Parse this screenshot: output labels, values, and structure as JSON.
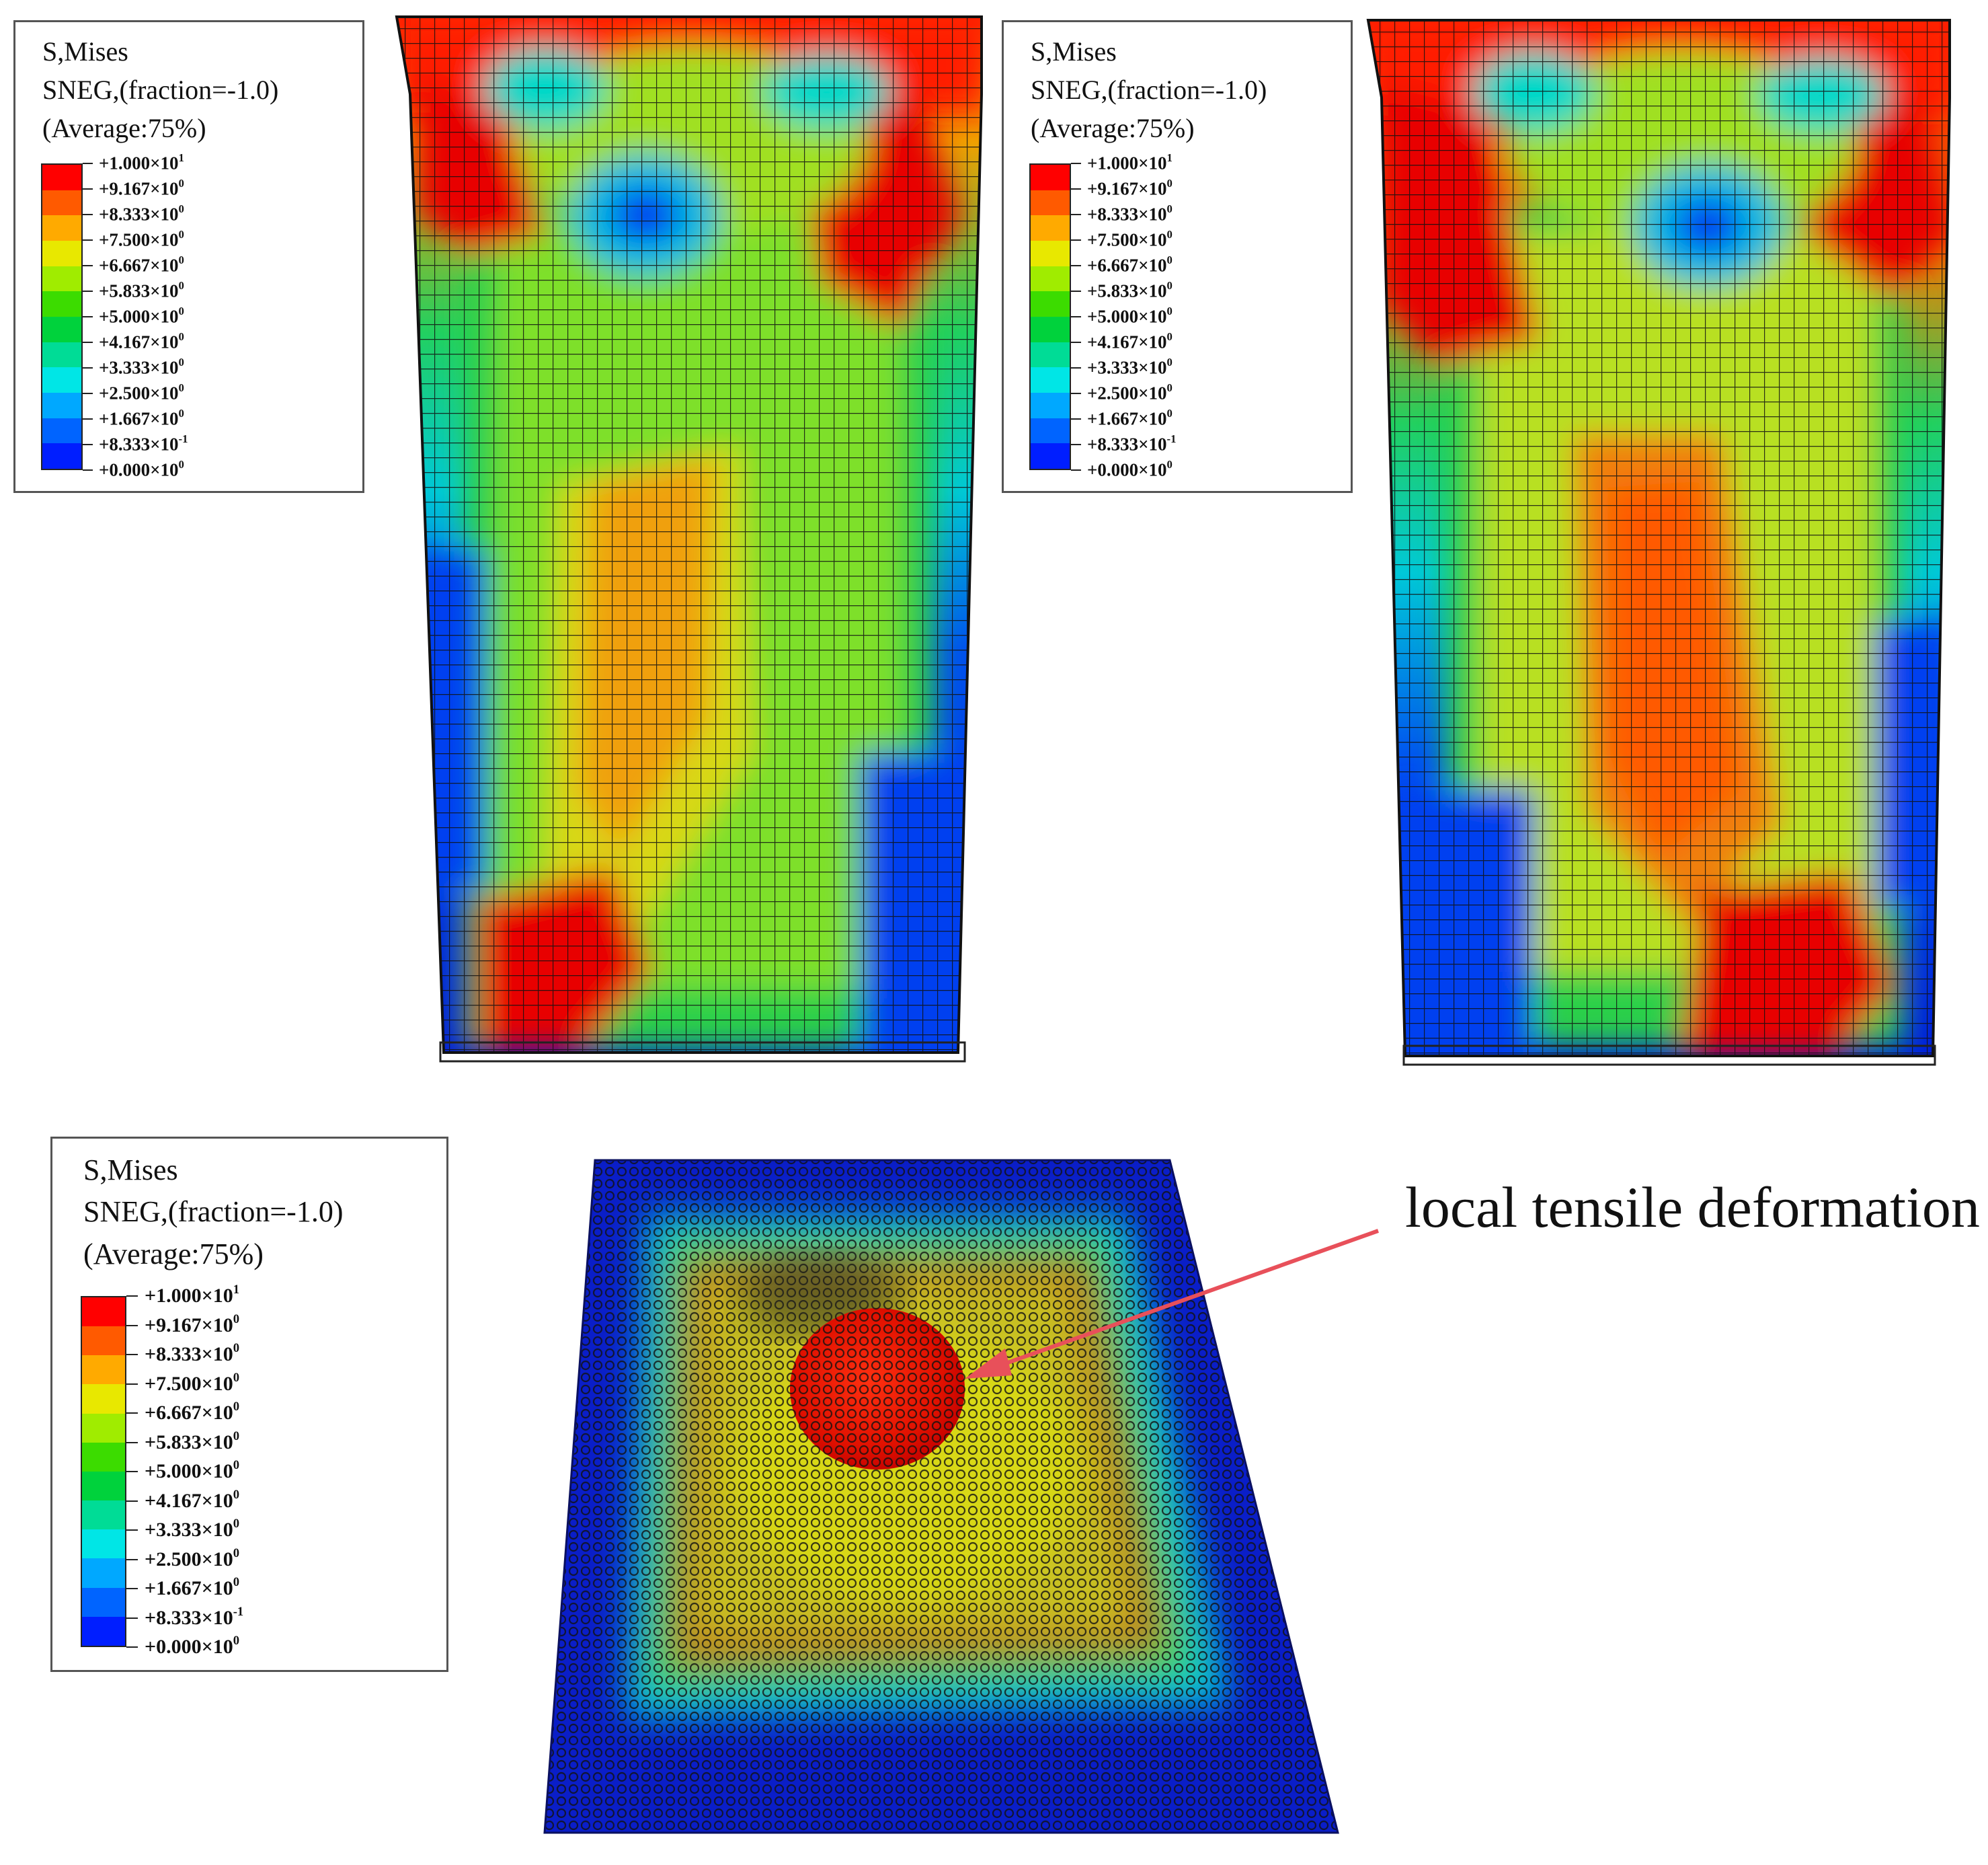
{
  "legend": {
    "line1": "S,Mises",
    "line2": "SNEG,(fraction=-1.0)",
    "line3": "(Average:75%)",
    "values": [
      {
        "mant": "+1.000×10",
        "exp": "1"
      },
      {
        "mant": "+9.167×10",
        "exp": "0"
      },
      {
        "mant": "+8.333×10",
        "exp": "0"
      },
      {
        "mant": "+7.500×10",
        "exp": "0"
      },
      {
        "mant": "+6.667×10",
        "exp": "0"
      },
      {
        "mant": "+5.833×10",
        "exp": "0"
      },
      {
        "mant": "+5.000×10",
        "exp": "0"
      },
      {
        "mant": "+4.167×10",
        "exp": "0"
      },
      {
        "mant": "+3.333×10",
        "exp": "0"
      },
      {
        "mant": "+2.500×10",
        "exp": "0"
      },
      {
        "mant": "+1.667×10",
        "exp": "0"
      },
      {
        "mant": "+8.333×10",
        "exp": "-1"
      },
      {
        "mant": "+0.000×10",
        "exp": "0"
      }
    ],
    "colors": [
      "#ff0000",
      "#ff5a00",
      "#ffaa00",
      "#e8e800",
      "#a0ec00",
      "#3cdc00",
      "#00d23c",
      "#00dc96",
      "#00e6e6",
      "#00a8ff",
      "#0064ff",
      "#001eff"
    ]
  },
  "annotation": {
    "text": "local tensile deformation",
    "arrow_color": "#e8505a"
  }
}
